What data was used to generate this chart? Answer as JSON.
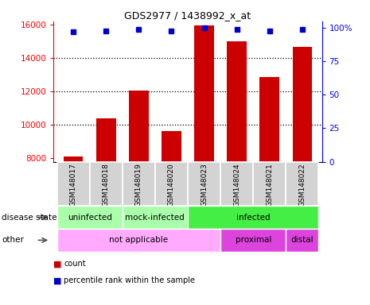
{
  "title": "GDS2977 / 1438992_x_at",
  "samples": [
    "GSM148017",
    "GSM148018",
    "GSM148019",
    "GSM148020",
    "GSM148023",
    "GSM148024",
    "GSM148021",
    "GSM148022"
  ],
  "counts": [
    8100,
    10400,
    12050,
    9650,
    15950,
    15000,
    12850,
    14650
  ],
  "percentile_ranks": [
    97,
    98,
    99,
    98,
    100,
    99,
    98,
    99
  ],
  "ylim_left": [
    7800,
    16200
  ],
  "ylim_right": [
    0,
    105
  ],
  "yticks_left": [
    8000,
    10000,
    12000,
    14000,
    16000
  ],
  "yticks_right": [
    0,
    25,
    50,
    75,
    100
  ],
  "bar_color": "#cc0000",
  "dot_color": "#0000cc",
  "ds_groups": [
    {
      "label": "uninfected",
      "start": 0,
      "end": 2,
      "color": "#aaffaa"
    },
    {
      "label": "mock-infected",
      "start": 2,
      "end": 4,
      "color": "#aaffaa"
    },
    {
      "label": "infected",
      "start": 4,
      "end": 8,
      "color": "#44ee44"
    }
  ],
  "ot_groups": [
    {
      "label": "not applicable",
      "start": 0,
      "end": 5,
      "color": "#ffaaff"
    },
    {
      "label": "proximal",
      "start": 5,
      "end": 7,
      "color": "#dd44dd"
    },
    {
      "label": "distal",
      "start": 7,
      "end": 8,
      "color": "#dd44dd"
    }
  ],
  "legend_items": [
    {
      "label": "count",
      "color": "#cc0000"
    },
    {
      "label": "percentile rank within the sample",
      "color": "#0000cc"
    }
  ],
  "background_color": "#ffffff",
  "label_disease_state": "disease state",
  "label_other": "other"
}
